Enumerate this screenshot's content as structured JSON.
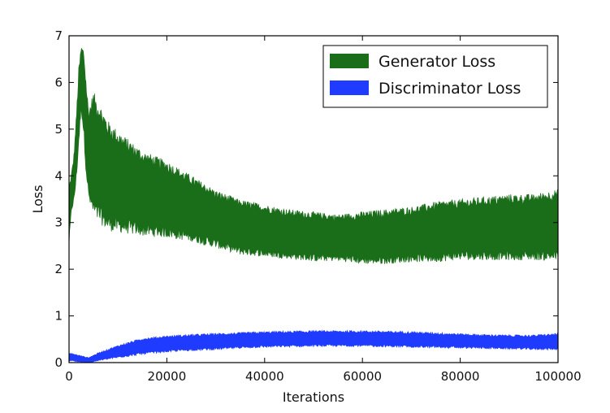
{
  "chart_data": {
    "type": "area",
    "title": "",
    "xlabel": "Iterations",
    "ylabel": "Loss",
    "xlim": [
      0,
      100000
    ],
    "ylim": [
      0,
      7
    ],
    "xticks": [
      0,
      20000,
      40000,
      60000,
      80000,
      100000
    ],
    "yticks": [
      0,
      1,
      2,
      3,
      4,
      5,
      6,
      7
    ],
    "xtick_labels": [
      "0",
      "20000",
      "40000",
      "60000",
      "80000",
      "100000"
    ],
    "ytick_labels": [
      "0",
      "1",
      "2",
      "3",
      "4",
      "5",
      "6",
      "7"
    ],
    "grid": false,
    "legend_position": "top-right",
    "series": [
      {
        "name": "Generator Loss",
        "color": "#1a6e1a",
        "x": [
          0,
          500,
          1000,
          1500,
          2000,
          2500,
          3000,
          3500,
          4000,
          5000,
          6000,
          8000,
          10000,
          15000,
          20000,
          25000,
          30000,
          35000,
          40000,
          45000,
          50000,
          55000,
          60000,
          65000,
          70000,
          75000,
          80000,
          85000,
          90000,
          95000,
          100000
        ],
        "lower": [
          2.6,
          3.3,
          3.5,
          4.0,
          4.8,
          5.5,
          5.0,
          4.2,
          3.6,
          3.3,
          3.2,
          3.0,
          2.95,
          2.85,
          2.8,
          2.7,
          2.55,
          2.4,
          2.35,
          2.3,
          2.25,
          2.25,
          2.2,
          2.2,
          2.25,
          2.25,
          2.3,
          2.3,
          2.3,
          2.3,
          2.3
        ],
        "upper": [
          3.7,
          4.0,
          4.4,
          5.2,
          6.2,
          6.7,
          6.6,
          5.9,
          5.3,
          5.6,
          5.4,
          5.0,
          4.8,
          4.4,
          4.2,
          3.9,
          3.6,
          3.4,
          3.3,
          3.2,
          3.15,
          3.1,
          3.15,
          3.2,
          3.25,
          3.35,
          3.4,
          3.45,
          3.5,
          3.5,
          3.6
        ]
      },
      {
        "name": "Discriminator Loss",
        "color": "#1f3bff",
        "x": [
          0,
          2000,
          4000,
          6000,
          10000,
          15000,
          20000,
          25000,
          30000,
          35000,
          40000,
          45000,
          50000,
          55000,
          60000,
          65000,
          70000,
          75000,
          80000,
          85000,
          90000,
          95000,
          100000
        ],
        "lower": [
          0.05,
          0.02,
          0.0,
          0.05,
          0.12,
          0.2,
          0.25,
          0.28,
          0.3,
          0.33,
          0.35,
          0.36,
          0.37,
          0.37,
          0.37,
          0.36,
          0.35,
          0.34,
          0.33,
          0.32,
          0.31,
          0.3,
          0.3
        ],
        "upper": [
          0.2,
          0.15,
          0.1,
          0.2,
          0.35,
          0.5,
          0.55,
          0.58,
          0.6,
          0.62,
          0.64,
          0.65,
          0.66,
          0.66,
          0.66,
          0.65,
          0.64,
          0.62,
          0.6,
          0.58,
          0.57,
          0.57,
          0.6
        ]
      }
    ]
  }
}
